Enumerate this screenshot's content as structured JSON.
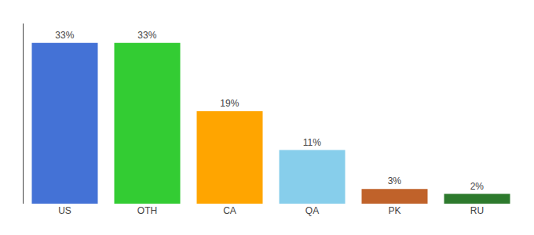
{
  "chart_data": {
    "type": "bar",
    "categories": [
      "US",
      "OTH",
      "CA",
      "QA",
      "PK",
      "RU"
    ],
    "values": [
      33,
      33,
      19,
      11,
      3,
      2
    ],
    "value_labels": [
      "33%",
      "33%",
      "19%",
      "11%",
      "3%",
      "2%"
    ],
    "colors": [
      "#4472d6",
      "#33cc33",
      "#ffa500",
      "#87ceeb",
      "#c0622a",
      "#2d7a2d"
    ],
    "ylim": [
      0,
      37
    ],
    "data_labels": true,
    "grid": false,
    "tick_labels": "x"
  }
}
